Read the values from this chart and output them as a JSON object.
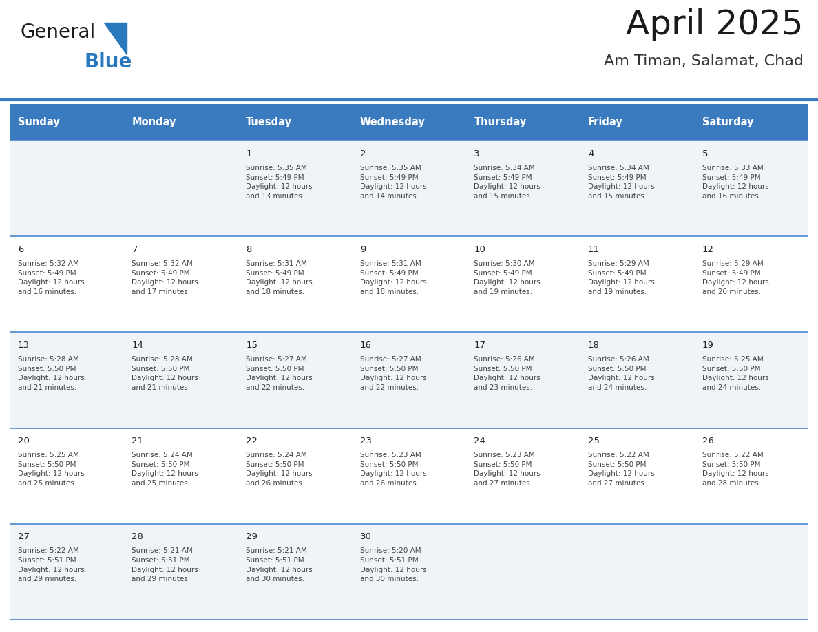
{
  "title": "April 2025",
  "subtitle": "Am Timan, Salamat, Chad",
  "days_of_week": [
    "Sunday",
    "Monday",
    "Tuesday",
    "Wednesday",
    "Thursday",
    "Friday",
    "Saturday"
  ],
  "header_bg": "#3a7bbf",
  "header_text": "#ffffff",
  "cell_bg_light": "#f0f4f8",
  "cell_bg_white": "#ffffff",
  "border_color": "#4a86c8",
  "text_color": "#444444",
  "day_num_color": "#222222",
  "title_color": "#1a1a1a",
  "subtitle_color": "#333333",
  "logo_general_color": "#1a1a1a",
  "logo_blue_color": "#2878be",
  "logo_triangle_color": "#2878be",
  "separator_color": "#3a7bbf",
  "calendar_data": [
    [
      {
        "day": "",
        "info": ""
      },
      {
        "day": "",
        "info": ""
      },
      {
        "day": "1",
        "info": "Sunrise: 5:35 AM\nSunset: 5:49 PM\nDaylight: 12 hours\nand 13 minutes."
      },
      {
        "day": "2",
        "info": "Sunrise: 5:35 AM\nSunset: 5:49 PM\nDaylight: 12 hours\nand 14 minutes."
      },
      {
        "day": "3",
        "info": "Sunrise: 5:34 AM\nSunset: 5:49 PM\nDaylight: 12 hours\nand 15 minutes."
      },
      {
        "day": "4",
        "info": "Sunrise: 5:34 AM\nSunset: 5:49 PM\nDaylight: 12 hours\nand 15 minutes."
      },
      {
        "day": "5",
        "info": "Sunrise: 5:33 AM\nSunset: 5:49 PM\nDaylight: 12 hours\nand 16 minutes."
      }
    ],
    [
      {
        "day": "6",
        "info": "Sunrise: 5:32 AM\nSunset: 5:49 PM\nDaylight: 12 hours\nand 16 minutes."
      },
      {
        "day": "7",
        "info": "Sunrise: 5:32 AM\nSunset: 5:49 PM\nDaylight: 12 hours\nand 17 minutes."
      },
      {
        "day": "8",
        "info": "Sunrise: 5:31 AM\nSunset: 5:49 PM\nDaylight: 12 hours\nand 18 minutes."
      },
      {
        "day": "9",
        "info": "Sunrise: 5:31 AM\nSunset: 5:49 PM\nDaylight: 12 hours\nand 18 minutes."
      },
      {
        "day": "10",
        "info": "Sunrise: 5:30 AM\nSunset: 5:49 PM\nDaylight: 12 hours\nand 19 minutes."
      },
      {
        "day": "11",
        "info": "Sunrise: 5:29 AM\nSunset: 5:49 PM\nDaylight: 12 hours\nand 19 minutes."
      },
      {
        "day": "12",
        "info": "Sunrise: 5:29 AM\nSunset: 5:49 PM\nDaylight: 12 hours\nand 20 minutes."
      }
    ],
    [
      {
        "day": "13",
        "info": "Sunrise: 5:28 AM\nSunset: 5:50 PM\nDaylight: 12 hours\nand 21 minutes."
      },
      {
        "day": "14",
        "info": "Sunrise: 5:28 AM\nSunset: 5:50 PM\nDaylight: 12 hours\nand 21 minutes."
      },
      {
        "day": "15",
        "info": "Sunrise: 5:27 AM\nSunset: 5:50 PM\nDaylight: 12 hours\nand 22 minutes."
      },
      {
        "day": "16",
        "info": "Sunrise: 5:27 AM\nSunset: 5:50 PM\nDaylight: 12 hours\nand 22 minutes."
      },
      {
        "day": "17",
        "info": "Sunrise: 5:26 AM\nSunset: 5:50 PM\nDaylight: 12 hours\nand 23 minutes."
      },
      {
        "day": "18",
        "info": "Sunrise: 5:26 AM\nSunset: 5:50 PM\nDaylight: 12 hours\nand 24 minutes."
      },
      {
        "day": "19",
        "info": "Sunrise: 5:25 AM\nSunset: 5:50 PM\nDaylight: 12 hours\nand 24 minutes."
      }
    ],
    [
      {
        "day": "20",
        "info": "Sunrise: 5:25 AM\nSunset: 5:50 PM\nDaylight: 12 hours\nand 25 minutes."
      },
      {
        "day": "21",
        "info": "Sunrise: 5:24 AM\nSunset: 5:50 PM\nDaylight: 12 hours\nand 25 minutes."
      },
      {
        "day": "22",
        "info": "Sunrise: 5:24 AM\nSunset: 5:50 PM\nDaylight: 12 hours\nand 26 minutes."
      },
      {
        "day": "23",
        "info": "Sunrise: 5:23 AM\nSunset: 5:50 PM\nDaylight: 12 hours\nand 26 minutes."
      },
      {
        "day": "24",
        "info": "Sunrise: 5:23 AM\nSunset: 5:50 PM\nDaylight: 12 hours\nand 27 minutes."
      },
      {
        "day": "25",
        "info": "Sunrise: 5:22 AM\nSunset: 5:50 PM\nDaylight: 12 hours\nand 27 minutes."
      },
      {
        "day": "26",
        "info": "Sunrise: 5:22 AM\nSunset: 5:50 PM\nDaylight: 12 hours\nand 28 minutes."
      }
    ],
    [
      {
        "day": "27",
        "info": "Sunrise: 5:22 AM\nSunset: 5:51 PM\nDaylight: 12 hours\nand 29 minutes."
      },
      {
        "day": "28",
        "info": "Sunrise: 5:21 AM\nSunset: 5:51 PM\nDaylight: 12 hours\nand 29 minutes."
      },
      {
        "day": "29",
        "info": "Sunrise: 5:21 AM\nSunset: 5:51 PM\nDaylight: 12 hours\nand 30 minutes."
      },
      {
        "day": "30",
        "info": "Sunrise: 5:20 AM\nSunset: 5:51 PM\nDaylight: 12 hours\nand 30 minutes."
      },
      {
        "day": "",
        "info": ""
      },
      {
        "day": "",
        "info": ""
      },
      {
        "day": "",
        "info": ""
      }
    ]
  ]
}
